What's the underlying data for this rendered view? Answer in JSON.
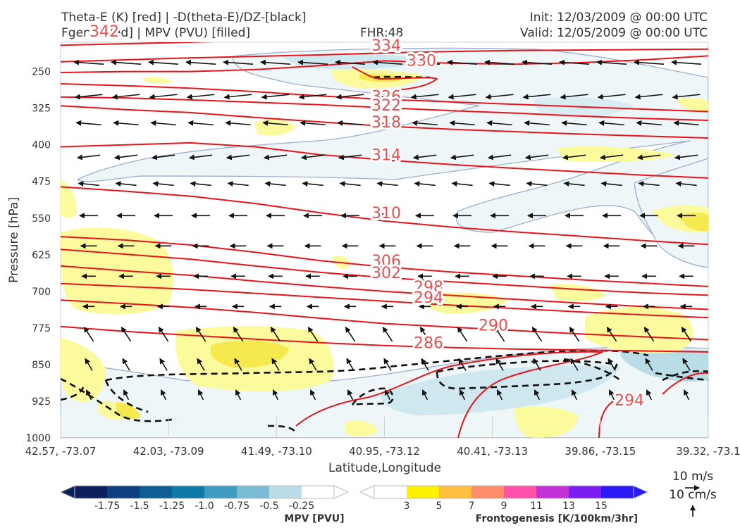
{
  "header": {
    "title_line1": "Theta-E (K) [red] | -D(theta-E)/DZ-[black]",
    "title_line2": "Fgen [filled] | MPV (PVU) [filled]",
    "fhr": "FHR:48",
    "init": "Init: 12/03/2009 @ 00:00 UTC",
    "valid": "Valid: 12/05/2009 @ 00:00 UTC"
  },
  "chart_data": {
    "type": "cross-section",
    "xlabel": "Latitude,Longitude",
    "ylabel": "Pressure [hPa]",
    "x_ticks": [
      "42.57, -73.07",
      "42.03, -73.09",
      "41.49, -73.10",
      "40.95, -73.12",
      "40.41, -73.13",
      "39.86, -73.15",
      "39.32, -73.1"
    ],
    "y_ticks": [
      250,
      325,
      400,
      475,
      550,
      625,
      700,
      775,
      850,
      925,
      1000
    ],
    "ylim": [
      1000,
      190
    ],
    "theta_e_contours": [
      {
        "label": "342",
        "pressure": 190,
        "y": [
          196,
          193,
          190,
          186,
          183,
          180,
          178,
          176,
          175,
          174,
          173
        ]
      },
      {
        "label": "334",
        "pressure": 222,
        "y": [
          230,
          226,
          222,
          219,
          216,
          212,
          209,
          207,
          206,
          205,
          204
        ]
      },
      {
        "label": "330",
        "pressure": 238,
        "y": [
          252,
          250,
          250,
          246,
          238,
          228,
          233,
          235,
          232,
          226,
          218
        ]
      },
      {
        "label": "326",
        "pressure": 300,
        "y": [
          275,
          279,
          284,
          291,
          300,
          307,
          312,
          317,
          322,
          327,
          332
        ]
      },
      {
        "label": "322",
        "pressure": 318,
        "y": [
          302,
          304,
          308,
          313,
          318,
          324,
          330,
          335,
          341,
          346,
          350
        ]
      },
      {
        "label": "318",
        "pressure": 353,
        "y": [
          320,
          328,
          334,
          344,
          353,
          362,
          368,
          373,
          378,
          382,
          386
        ]
      },
      {
        "label": "314",
        "pressure": 420,
        "y": [
          404,
          400,
          396,
          404,
          420,
          431,
          440,
          448,
          455,
          462,
          468
        ]
      },
      {
        "label": "310",
        "pressure": 539,
        "y": [
          486,
          495,
          505,
          520,
          539,
          556,
          568,
          578,
          587,
          596,
          604
        ]
      },
      {
        "label": "306",
        "pressure": 637,
        "y": [
          588,
          595,
          605,
          620,
          637,
          650,
          660,
          668,
          676,
          683,
          690
        ]
      },
      {
        "label": "302",
        "pressure": 661,
        "y": [
          614,
          624,
          634,
          648,
          661,
          672,
          680,
          688,
          696,
          703,
          708
        ]
      },
      {
        "label": "298",
        "pressure": 690,
        "y": [
          648,
          658,
          667,
          679,
          690,
          700,
          708,
          716,
          724,
          731,
          737
        ]
      },
      {
        "label": "294",
        "pressure": 712,
        "y": [
          684,
          690,
          696,
          704,
          712,
          720,
          728,
          735,
          742,
          748,
          754
        ]
      },
      {
        "label": "290",
        "pressure": 769,
        "y": [
          718,
          725,
          733,
          743,
          755,
          766,
          773,
          780,
          787,
          793,
          799
        ]
      },
      {
        "label": "286",
        "pressure": 805,
        "y": [
          772,
          782,
          790,
          798,
          805,
          811,
          815,
          818,
          820,
          822,
          824
        ]
      }
    ],
    "theta_e_label_294_surface": "294",
    "legend_mpv": {
      "title": "MPV [PVU]",
      "ticks": [
        "-1.75",
        "-1.5",
        "-1.25",
        "-1.0",
        "-0.75",
        "-0.5",
        "-0.25"
      ],
      "colors": [
        "#0c1f5c",
        "#0d3f7e",
        "#0e5e95",
        "#0f7aa8",
        "#3e9cc0",
        "#79bcd3",
        "#b9dce6",
        "#ffffff"
      ]
    },
    "legend_fgen": {
      "title": "Frontogenesis [K/100km/3hr]",
      "ticks": [
        "3",
        "5",
        "7",
        "9",
        "11",
        "13",
        "15"
      ],
      "colors": [
        "#ffffff",
        "#fff200",
        "#ffc040",
        "#ff8c6a",
        "#ff52a8",
        "#c232d6",
        "#7a1ef2",
        "#2a18f5"
      ]
    },
    "wind_reference": {
      "label1": "10 m/s",
      "label2": "10 cm/s"
    }
  }
}
